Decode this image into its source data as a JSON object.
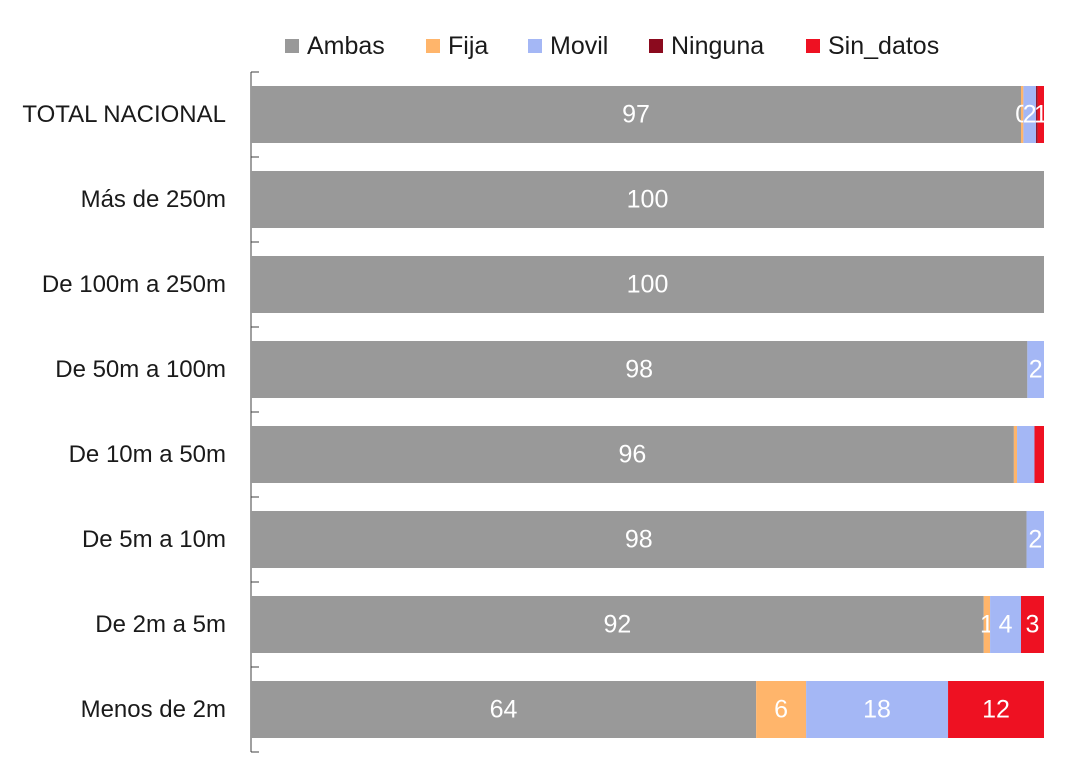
{
  "chart_data": {
    "type": "bar",
    "orientation": "horizontal",
    "stacked": true,
    "categories": [
      "TOTAL NACIONAL",
      "Más de 250m",
      "De 100m a 250m",
      "De 50m a 100m",
      "De 10m a 50m",
      "De 5m a 10m",
      "De 2m a 5m",
      "Menos de 2m"
    ],
    "series": [
      {
        "name": "Ambas",
        "color": "#999999",
        "values": [
          97.1,
          100,
          100,
          97.9,
          96.2,
          97.8,
          92.4,
          63.7
        ],
        "labels": [
          "97",
          "100",
          "100",
          "98",
          "96",
          "98",
          "92",
          "64"
        ]
      },
      {
        "name": "Fija",
        "color": "#ffb56b",
        "values": [
          0.3,
          0,
          0,
          0,
          0.4,
          0,
          0.8,
          6.3
        ],
        "labels": [
          "0",
          "",
          "",
          "",
          "",
          "",
          "1",
          "6"
        ]
      },
      {
        "name": "Movil",
        "color": "#a4b7f5",
        "values": [
          1.6,
          0,
          0,
          2.1,
          2.2,
          2.2,
          3.9,
          17.9
        ],
        "labels": [
          "2",
          "",
          "",
          "2",
          "",
          "2",
          "4",
          "18"
        ]
      },
      {
        "name": "Ninguna",
        "color": "#8b0a1e",
        "values": [
          0.2,
          0,
          0,
          0,
          0,
          0,
          0,
          0
        ],
        "labels": [
          "",
          "",
          "",
          "",
          "",
          "",
          "",
          ""
        ]
      },
      {
        "name": "Sin_datos",
        "color": "#ee1122",
        "values": [
          0.8,
          0,
          0,
          0,
          1.2,
          0,
          2.9,
          12.1
        ],
        "labels": [
          "1",
          "",
          "",
          "",
          "",
          "",
          "3",
          "12"
        ]
      }
    ],
    "xlim": [
      0,
      100
    ],
    "grid": false,
    "legend_position": "top"
  }
}
